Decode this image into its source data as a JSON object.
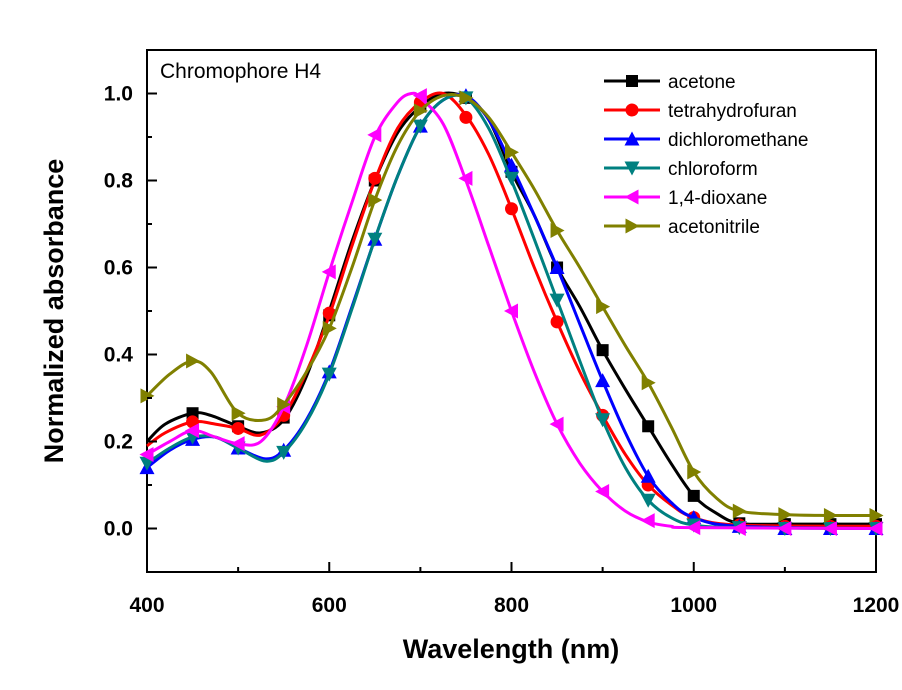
{
  "chart_data": {
    "type": "line",
    "title": "Chromophore H4",
    "xlabel": "Wavelength (nm)",
    "ylabel": "Normalized absorbance",
    "xlim": [
      400,
      1200
    ],
    "ylim": [
      -0.1,
      1.1
    ],
    "xticks": [
      400,
      600,
      800,
      1000,
      1200
    ],
    "xtick_labels": [
      "400",
      "600",
      "800",
      "1000",
      "1200"
    ],
    "yticks": [
      0.0,
      0.2,
      0.4,
      0.6,
      0.8,
      1.0
    ],
    "ytick_labels": [
      "0.0",
      "0.2",
      "0.4",
      "0.6",
      "0.8",
      "1.0"
    ],
    "grid": false,
    "legend_position": "top-right",
    "series": [
      {
        "name": "acetone",
        "color": "#000000",
        "marker": "square",
        "curve": [
          [
            400,
            0.2
          ],
          [
            420,
            0.24
          ],
          [
            450,
            0.265
          ],
          [
            470,
            0.26
          ],
          [
            500,
            0.235
          ],
          [
            525,
            0.22
          ],
          [
            550,
            0.25
          ],
          [
            575,
            0.35
          ],
          [
            600,
            0.5
          ],
          [
            625,
            0.66
          ],
          [
            650,
            0.8
          ],
          [
            675,
            0.91
          ],
          [
            700,
            0.97
          ],
          [
            725,
            1.0
          ],
          [
            750,
            0.99
          ],
          [
            775,
            0.94
          ],
          [
            800,
            0.82
          ],
          [
            825,
            0.72
          ],
          [
            850,
            0.6
          ],
          [
            875,
            0.51
          ],
          [
            900,
            0.41
          ],
          [
            925,
            0.32
          ],
          [
            950,
            0.235
          ],
          [
            975,
            0.15
          ],
          [
            1000,
            0.075
          ],
          [
            1025,
            0.035
          ],
          [
            1050,
            0.012
          ],
          [
            1100,
            0.01
          ],
          [
            1200,
            0.01
          ]
        ],
        "markers": [
          [
            450,
            0.265
          ],
          [
            500,
            0.235
          ],
          [
            550,
            0.255
          ],
          [
            600,
            0.49
          ],
          [
            650,
            0.8
          ],
          [
            700,
            0.97
          ],
          [
            750,
            0.99
          ],
          [
            800,
            0.82
          ],
          [
            850,
            0.6
          ],
          [
            900,
            0.41
          ],
          [
            950,
            0.235
          ],
          [
            1000,
            0.075
          ],
          [
            1050,
            0.012
          ],
          [
            1100,
            0.01
          ],
          [
            1150,
            0.01
          ],
          [
            1200,
            0.01
          ]
        ]
      },
      {
        "name": "tetrahydrofuran",
        "color": "#ff0000",
        "marker": "circle",
        "curve": [
          [
            400,
            0.19
          ],
          [
            420,
            0.22
          ],
          [
            450,
            0.245
          ],
          [
            475,
            0.24
          ],
          [
            500,
            0.23
          ],
          [
            525,
            0.215
          ],
          [
            550,
            0.26
          ],
          [
            575,
            0.36
          ],
          [
            600,
            0.49
          ],
          [
            625,
            0.65
          ],
          [
            650,
            0.8
          ],
          [
            675,
            0.92
          ],
          [
            700,
            0.98
          ],
          [
            725,
            1.0
          ],
          [
            750,
            0.95
          ],
          [
            775,
            0.86
          ],
          [
            800,
            0.735
          ],
          [
            825,
            0.6
          ],
          [
            850,
            0.475
          ],
          [
            875,
            0.36
          ],
          [
            900,
            0.26
          ],
          [
            925,
            0.17
          ],
          [
            950,
            0.1
          ],
          [
            975,
            0.055
          ],
          [
            1000,
            0.025
          ],
          [
            1050,
            0.008
          ],
          [
            1200,
            0.005
          ]
        ],
        "markers": [
          [
            450,
            0.245
          ],
          [
            500,
            0.23
          ],
          [
            550,
            0.26
          ],
          [
            600,
            0.495
          ],
          [
            650,
            0.805
          ],
          [
            700,
            0.98
          ],
          [
            750,
            0.945
          ],
          [
            800,
            0.735
          ],
          [
            850,
            0.475
          ],
          [
            900,
            0.26
          ],
          [
            950,
            0.1
          ],
          [
            1000,
            0.025
          ],
          [
            1050,
            0.008
          ],
          [
            1100,
            0.005
          ],
          [
            1150,
            0.005
          ],
          [
            1200,
            0.005
          ]
        ]
      },
      {
        "name": "dichloromethane",
        "color": "#0000ff",
        "marker": "triangle-up",
        "curve": [
          [
            400,
            0.14
          ],
          [
            425,
            0.18
          ],
          [
            450,
            0.205
          ],
          [
            475,
            0.21
          ],
          [
            500,
            0.185
          ],
          [
            530,
            0.16
          ],
          [
            550,
            0.18
          ],
          [
            575,
            0.25
          ],
          [
            600,
            0.36
          ],
          [
            625,
            0.51
          ],
          [
            650,
            0.665
          ],
          [
            675,
            0.81
          ],
          [
            700,
            0.925
          ],
          [
            725,
            0.985
          ],
          [
            750,
            0.995
          ],
          [
            775,
            0.94
          ],
          [
            800,
            0.835
          ],
          [
            825,
            0.72
          ],
          [
            850,
            0.6
          ],
          [
            875,
            0.47
          ],
          [
            900,
            0.34
          ],
          [
            925,
            0.22
          ],
          [
            950,
            0.12
          ],
          [
            975,
            0.06
          ],
          [
            1000,
            0.025
          ],
          [
            1050,
            0.005
          ],
          [
            1200,
            0.0
          ]
        ],
        "markers": [
          [
            400,
            0.14
          ],
          [
            450,
            0.205
          ],
          [
            500,
            0.185
          ],
          [
            550,
            0.18
          ],
          [
            600,
            0.36
          ],
          [
            650,
            0.665
          ],
          [
            700,
            0.925
          ],
          [
            750,
            0.995
          ],
          [
            800,
            0.835
          ],
          [
            850,
            0.6
          ],
          [
            900,
            0.34
          ],
          [
            950,
            0.12
          ],
          [
            1000,
            0.025
          ],
          [
            1050,
            0.005
          ],
          [
            1100,
            0.0
          ],
          [
            1150,
            0.0
          ],
          [
            1200,
            0.0
          ]
        ]
      },
      {
        "name": "chloroform",
        "color": "#008080",
        "marker": "triangle-down",
        "curve": [
          [
            400,
            0.15
          ],
          [
            425,
            0.185
          ],
          [
            450,
            0.21
          ],
          [
            475,
            0.21
          ],
          [
            500,
            0.185
          ],
          [
            530,
            0.155
          ],
          [
            550,
            0.175
          ],
          [
            575,
            0.245
          ],
          [
            600,
            0.355
          ],
          [
            625,
            0.505
          ],
          [
            650,
            0.665
          ],
          [
            675,
            0.81
          ],
          [
            700,
            0.925
          ],
          [
            725,
            0.985
          ],
          [
            750,
            0.99
          ],
          [
            775,
            0.92
          ],
          [
            800,
            0.8
          ],
          [
            825,
            0.665
          ],
          [
            850,
            0.525
          ],
          [
            875,
            0.385
          ],
          [
            900,
            0.25
          ],
          [
            925,
            0.14
          ],
          [
            950,
            0.065
          ],
          [
            975,
            0.025
          ],
          [
            1000,
            0.008
          ],
          [
            1050,
            0.002
          ],
          [
            1200,
            0.0
          ]
        ],
        "markers": [
          [
            400,
            0.15
          ],
          [
            450,
            0.21
          ],
          [
            500,
            0.185
          ],
          [
            550,
            0.175
          ],
          [
            600,
            0.355
          ],
          [
            650,
            0.665
          ],
          [
            700,
            0.925
          ],
          [
            750,
            0.99
          ],
          [
            800,
            0.805
          ],
          [
            850,
            0.525
          ],
          [
            900,
            0.25
          ],
          [
            950,
            0.065
          ],
          [
            1000,
            0.008
          ],
          [
            1050,
            0.002
          ],
          [
            1100,
            0.0
          ],
          [
            1150,
            0.0
          ],
          [
            1200,
            0.0
          ]
        ]
      },
      {
        "name": "1,4-dioxane",
        "color": "#ff00ff",
        "marker": "triangle-left",
        "curve": [
          [
            400,
            0.17
          ],
          [
            425,
            0.2
          ],
          [
            450,
            0.225
          ],
          [
            475,
            0.21
          ],
          [
            500,
            0.195
          ],
          [
            525,
            0.2
          ],
          [
            550,
            0.28
          ],
          [
            575,
            0.42
          ],
          [
            600,
            0.59
          ],
          [
            625,
            0.75
          ],
          [
            650,
            0.9
          ],
          [
            675,
            0.98
          ],
          [
            690,
            1.0
          ],
          [
            700,
            0.99
          ],
          [
            725,
            0.93
          ],
          [
            750,
            0.8
          ],
          [
            775,
            0.65
          ],
          [
            800,
            0.5
          ],
          [
            825,
            0.36
          ],
          [
            850,
            0.24
          ],
          [
            875,
            0.15
          ],
          [
            900,
            0.085
          ],
          [
            925,
            0.04
          ],
          [
            950,
            0.015
          ],
          [
            975,
            0.005
          ],
          [
            1000,
            0.002
          ],
          [
            1200,
            0.0
          ]
        ],
        "markers": [
          [
            400,
            0.17
          ],
          [
            450,
            0.225
          ],
          [
            500,
            0.195
          ],
          [
            550,
            0.28
          ],
          [
            600,
            0.59
          ],
          [
            650,
            0.905
          ],
          [
            700,
            0.995
          ],
          [
            750,
            0.805
          ],
          [
            800,
            0.5
          ],
          [
            850,
            0.24
          ],
          [
            900,
            0.085
          ],
          [
            950,
            0.018
          ],
          [
            1000,
            0.002
          ],
          [
            1050,
            0.0
          ],
          [
            1100,
            0.0
          ],
          [
            1150,
            0.0
          ],
          [
            1200,
            0.0
          ]
        ]
      },
      {
        "name": "acetonitrile",
        "color": "#808000",
        "marker": "triangle-right",
        "curve": [
          [
            400,
            0.305
          ],
          [
            425,
            0.355
          ],
          [
            450,
            0.385
          ],
          [
            470,
            0.36
          ],
          [
            500,
            0.265
          ],
          [
            530,
            0.25
          ],
          [
            550,
            0.285
          ],
          [
            575,
            0.36
          ],
          [
            600,
            0.46
          ],
          [
            625,
            0.6
          ],
          [
            650,
            0.755
          ],
          [
            675,
            0.88
          ],
          [
            700,
            0.96
          ],
          [
            725,
            0.995
          ],
          [
            750,
            0.99
          ],
          [
            775,
            0.945
          ],
          [
            800,
            0.865
          ],
          [
            825,
            0.78
          ],
          [
            850,
            0.685
          ],
          [
            875,
            0.6
          ],
          [
            900,
            0.51
          ],
          [
            925,
            0.42
          ],
          [
            950,
            0.335
          ],
          [
            975,
            0.235
          ],
          [
            1000,
            0.13
          ],
          [
            1025,
            0.07
          ],
          [
            1050,
            0.04
          ],
          [
            1100,
            0.032
          ],
          [
            1150,
            0.03
          ],
          [
            1200,
            0.03
          ]
        ],
        "markers": [
          [
            400,
            0.305
          ],
          [
            450,
            0.385
          ],
          [
            500,
            0.265
          ],
          [
            550,
            0.285
          ],
          [
            600,
            0.46
          ],
          [
            650,
            0.755
          ],
          [
            700,
            0.96
          ],
          [
            750,
            0.99
          ],
          [
            800,
            0.865
          ],
          [
            850,
            0.685
          ],
          [
            900,
            0.51
          ],
          [
            950,
            0.335
          ],
          [
            1000,
            0.13
          ],
          [
            1050,
            0.04
          ],
          [
            1100,
            0.032
          ],
          [
            1150,
            0.03
          ],
          [
            1200,
            0.03
          ]
        ]
      }
    ]
  }
}
